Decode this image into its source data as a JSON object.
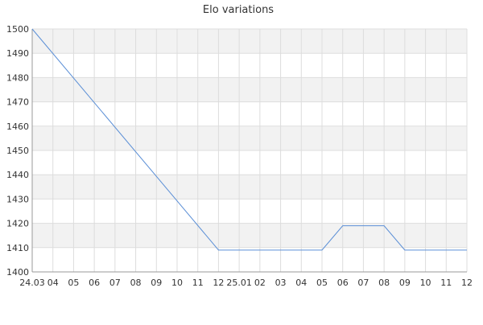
{
  "chart_data": {
    "type": "line",
    "title": "Elo variations",
    "xlabel": "",
    "ylabel": "",
    "ylim": [
      1400,
      1500
    ],
    "yticks": [
      1400,
      1410,
      1420,
      1430,
      1440,
      1450,
      1460,
      1470,
      1480,
      1490,
      1500
    ],
    "grid": true,
    "legend": "none",
    "x_tick_labels": [
      "24.03",
      "04",
      "05",
      "06",
      "07",
      "08",
      "09",
      "10",
      "11",
      "12",
      "25.01",
      "02",
      "03",
      "04",
      "05",
      "06",
      "07",
      "08",
      "09",
      "10",
      "11",
      "12"
    ],
    "xlim": [
      0,
      21
    ],
    "series": [
      {
        "x": [
          0,
          9,
          10,
          11,
          12,
          13,
          14,
          15,
          16,
          17,
          18,
          19,
          20,
          21
        ],
        "values": [
          1500,
          1409,
          1409,
          1409,
          1409,
          1409,
          1409,
          1419,
          1419,
          1419,
          1409,
          1409,
          1409,
          1409
        ]
      }
    ]
  },
  "colors": {
    "line": "#5b8fd6",
    "band": "#f2f2f2",
    "grid": "#dddddd",
    "axis": "#999999",
    "text": "#333333"
  }
}
